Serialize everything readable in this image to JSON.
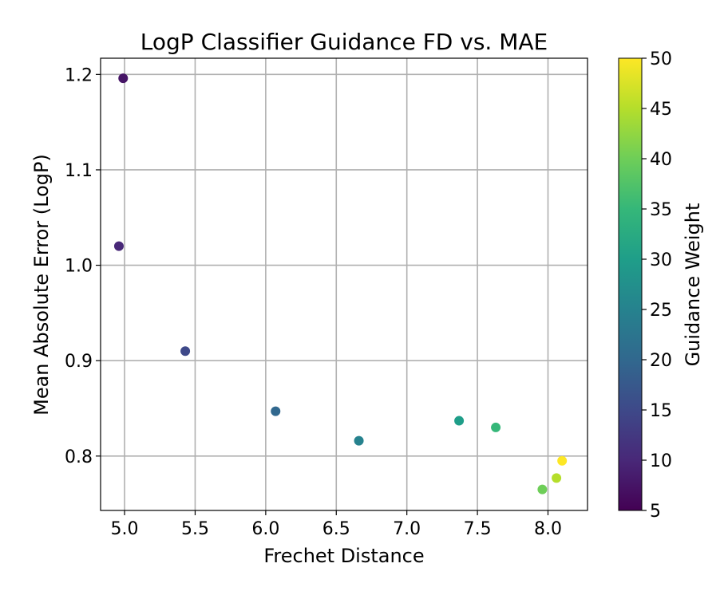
{
  "chart_data": {
    "type": "scatter",
    "title": "LogP Classifier Guidance FD vs. MAE",
    "xlabel": "Frechet Distance",
    "ylabel": "Mean Absolute Error (LogP)",
    "colorbar_label": "Guidance Weight",
    "colormap": "viridis",
    "xlim": [
      4.83,
      8.28
    ],
    "ylim": [
      0.743,
      1.217
    ],
    "xticks": [
      5.0,
      5.5,
      6.0,
      6.5,
      7.0,
      7.5,
      8.0
    ],
    "xtick_labels": [
      "5.0",
      "5.5",
      "6.0",
      "6.5",
      "7.0",
      "7.5",
      "8.0"
    ],
    "yticks": [
      0.8,
      0.9,
      1.0,
      1.1,
      1.2
    ],
    "ytick_labels": [
      "0.8",
      "0.9",
      "1.0",
      "1.1",
      "1.2"
    ],
    "colorbar_range": [
      5,
      50
    ],
    "colorbar_ticks": [
      5,
      10,
      15,
      20,
      25,
      30,
      35,
      40,
      45,
      50
    ],
    "colorbar_tick_labels": [
      "5",
      "10",
      "15",
      "20",
      "25",
      "30",
      "35",
      "40",
      "45",
      "50"
    ],
    "grid": true,
    "points": [
      {
        "x": 4.99,
        "y": 1.196,
        "weight": 7.5
      },
      {
        "x": 4.96,
        "y": 1.02,
        "weight": 10
      },
      {
        "x": 5.43,
        "y": 0.91,
        "weight": 15
      },
      {
        "x": 6.07,
        "y": 0.847,
        "weight": 20
      },
      {
        "x": 6.66,
        "y": 0.816,
        "weight": 25
      },
      {
        "x": 7.37,
        "y": 0.837,
        "weight": 30
      },
      {
        "x": 7.63,
        "y": 0.83,
        "weight": 35
      },
      {
        "x": 7.96,
        "y": 0.765,
        "weight": 40
      },
      {
        "x": 8.06,
        "y": 0.777,
        "weight": 45
      },
      {
        "x": 8.1,
        "y": 0.795,
        "weight": 50
      }
    ]
  }
}
